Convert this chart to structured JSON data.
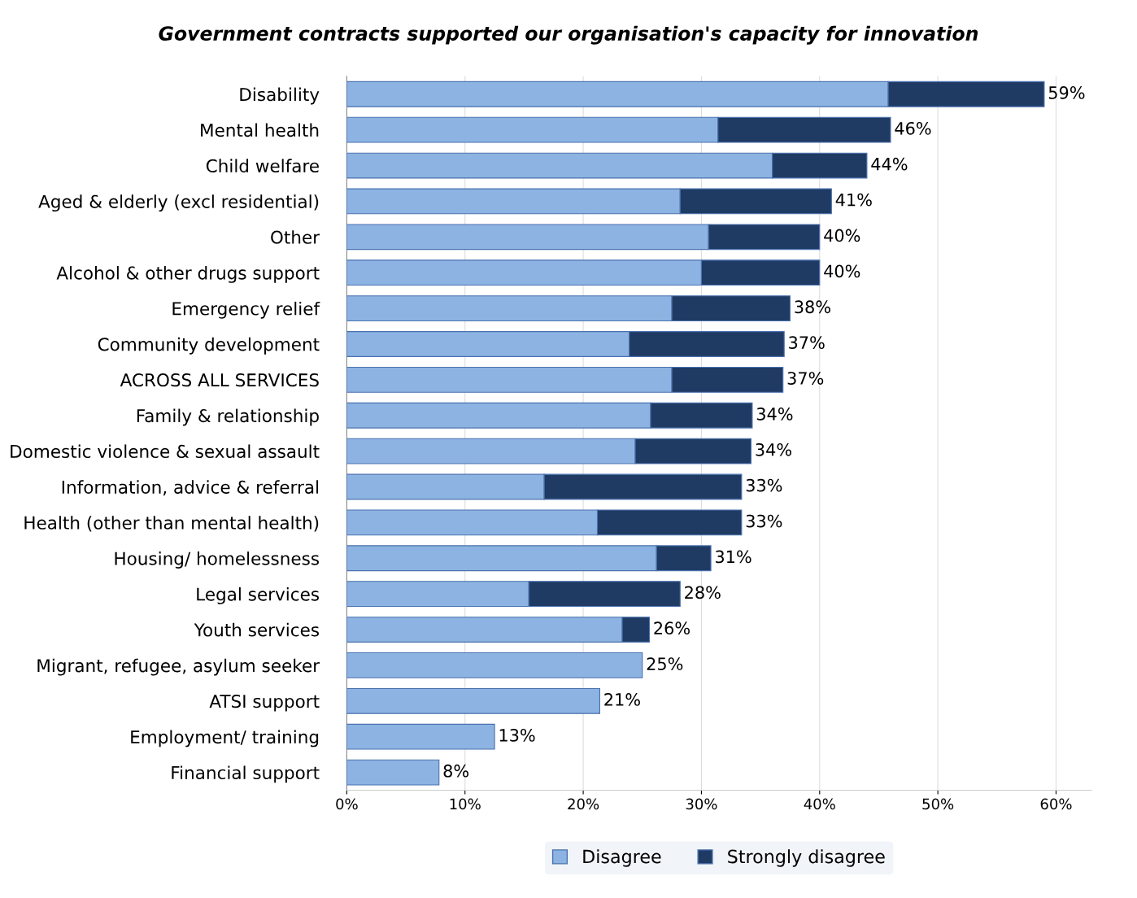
{
  "chart_data": {
    "type": "bar",
    "orientation": "horizontal",
    "stacked": true,
    "title": "Government contracts supported our organisation's capacity for innovation",
    "categories": [
      "Disability",
      "Mental health",
      "Child welfare",
      "Aged & elderly (excl residential)",
      "Other",
      "Alcohol & other drugs support",
      "Emergency relief",
      "Community development",
      "ACROSS ALL SERVICES",
      "Family & relationship",
      "Domestic violence & sexual assault",
      "Information, advice & referral",
      "Health (other than mental health)",
      "Housing/ homelessness",
      "Legal services",
      "Youth services",
      "Migrant, refugee, asylum seeker",
      "ATSI support",
      "Employment/ training",
      "Financial support"
    ],
    "series": [
      {
        "name": "Disagree",
        "color": "#8db3e2",
        "values": [
          45.8,
          31.4,
          36.0,
          28.2,
          30.6,
          30.0,
          27.5,
          23.9,
          27.5,
          25.7,
          24.4,
          16.7,
          21.2,
          26.2,
          15.4,
          23.3,
          25.0,
          21.4,
          12.5,
          7.8
        ]
      },
      {
        "name": "Strongly disagree",
        "color": "#1f3b63",
        "values": [
          13.2,
          14.6,
          8.0,
          12.8,
          9.4,
          10.0,
          10.0,
          13.1,
          9.4,
          8.6,
          9.8,
          16.7,
          12.2,
          4.6,
          12.8,
          2.3,
          null,
          null,
          null,
          null
        ]
      }
    ],
    "totals": [
      "59%",
      "46%",
      "44%",
      "41%",
      "40%",
      "40%",
      "38%",
      "37%",
      "37%",
      "34%",
      "34%",
      "33%",
      "33%",
      "31%",
      "28%",
      "26%",
      "25%",
      "21%",
      "13%",
      "8%"
    ],
    "xlim": [
      0,
      63
    ],
    "xticks": [
      {
        "value": 0,
        "label": "0%"
      },
      {
        "value": 10,
        "label": "10%"
      },
      {
        "value": 20,
        "label": "20%"
      },
      {
        "value": 30,
        "label": "30%"
      },
      {
        "value": 40,
        "label": "40%"
      },
      {
        "value": 50,
        "label": "50%"
      },
      {
        "value": 60,
        "label": "60%"
      }
    ],
    "grid": "x",
    "legend": "bottom"
  }
}
